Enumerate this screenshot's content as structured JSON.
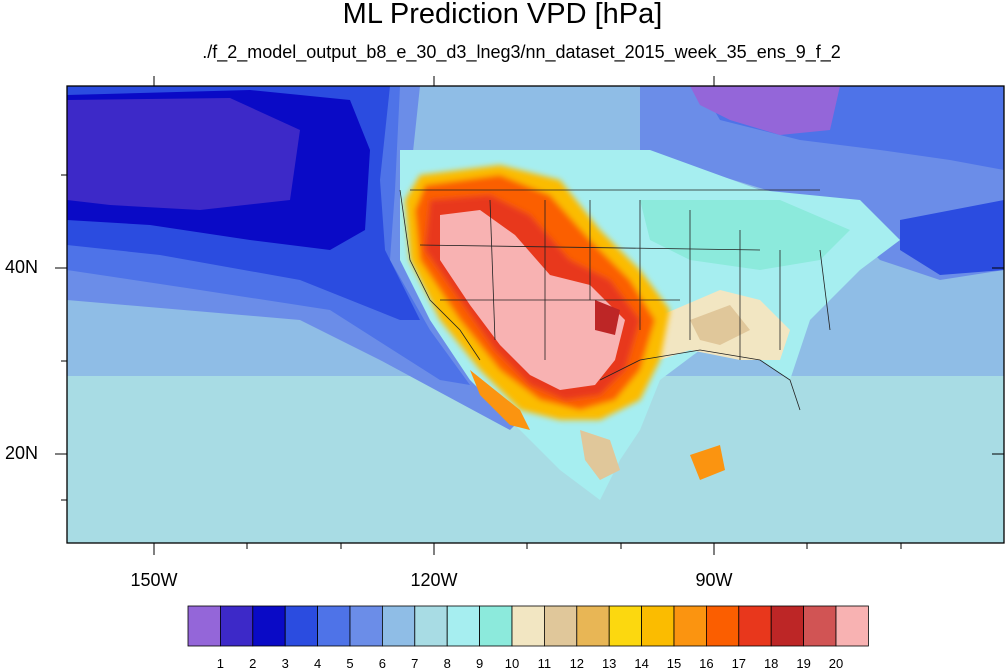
{
  "title": "ML Prediction VPD [hPa]",
  "subtitle": "./f_2_model_output_b8_e_30_d3_lneg3/nn_dataset_2015_week_35_ens_9_f_2",
  "axes": {
    "lon_labels": [
      "150W",
      "120W",
      "90W"
    ],
    "lat_labels": [
      "40N",
      "20N"
    ]
  },
  "colorbar": {
    "labels": [
      "1",
      "2",
      "3",
      "4",
      "5",
      "6",
      "7",
      "8",
      "9",
      "10",
      "11",
      "12",
      "13",
      "14",
      "15",
      "16",
      "17",
      "18",
      "19",
      "20"
    ],
    "colors": [
      "#9466d9",
      "#3d29c8",
      "#0a0ac6",
      "#2b4ce0",
      "#4e73e8",
      "#6b8de8",
      "#8fbde6",
      "#a8dce4",
      "#a6eef0",
      "#8ceadc",
      "#f2e6c2",
      "#e0c79a",
      "#e8b655",
      "#fcd80f",
      "#fbbc00",
      "#fb9410",
      "#fb5e00",
      "#e8371c",
      "#bd2626",
      "#d15454",
      "#f8b2b2"
    ]
  },
  "colors": {
    "ocean_deep": "#3d29c8",
    "ocean_mid": "#2b4ce0",
    "ocean_light": "#8fbde6",
    "land_base": "#a6eef0",
    "arid_core": "#f8b2b2",
    "boundaries": "#222222"
  }
}
